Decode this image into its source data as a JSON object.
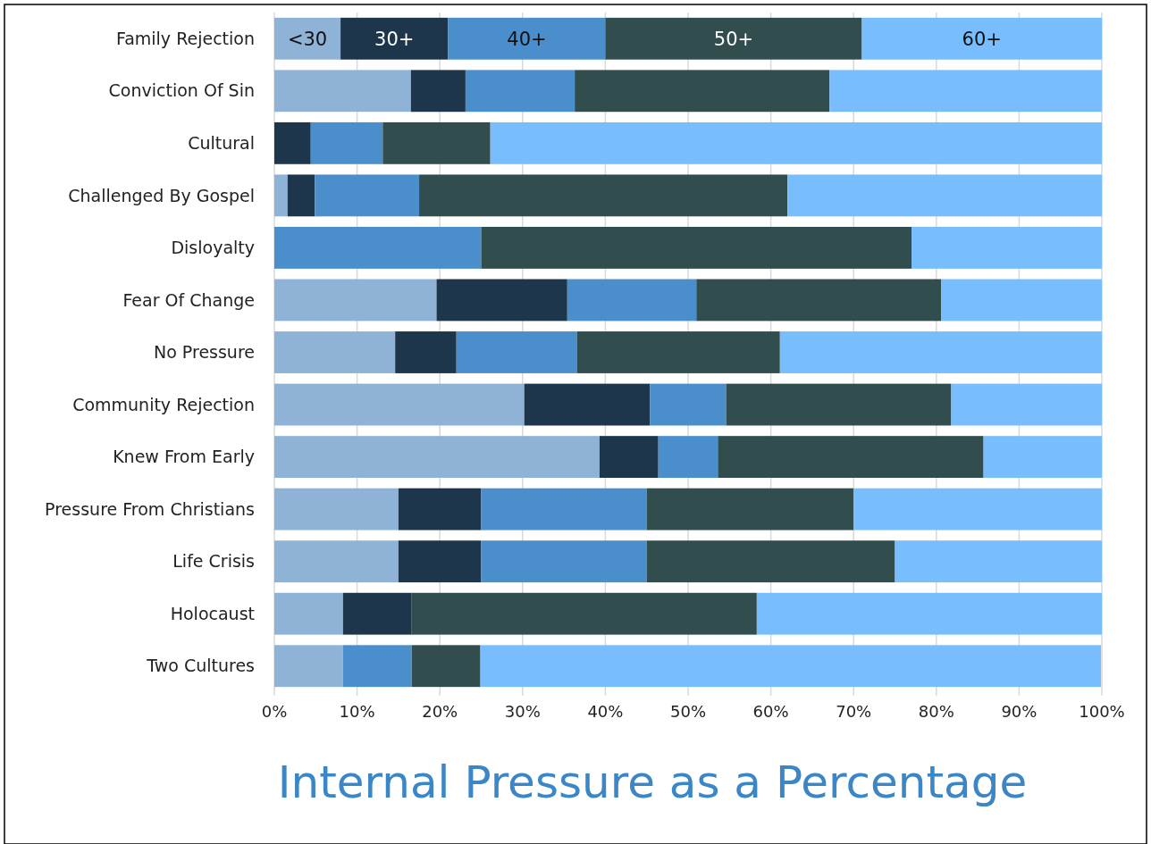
{
  "chart_data": {
    "type": "bar",
    "orientation": "horizontal",
    "stacked": true,
    "title": "Internal Pressure as a Percentage",
    "categories": [
      "Family Rejection",
      "Conviction Of Sin",
      "Cultural",
      "Challenged By Gospel",
      "Disloyalty",
      "Fear Of Change",
      "No Pressure",
      "Community Rejection",
      "Knew From Early",
      "Pressure From Christians",
      "Life Crisis",
      "Holocaust",
      "Two Cultures"
    ],
    "series": [
      {
        "name": "<30",
        "color": "#8fb3d6",
        "values": [
          8,
          16.5,
          0,
          1.6,
          0,
          19.6,
          14.6,
          30.2,
          39.3,
          15,
          15,
          8.3,
          8.3
        ]
      },
      {
        "name": "30+",
        "color": "#1d364c",
        "values": [
          13,
          6.6,
          4.4,
          3.3,
          0,
          15.8,
          7.4,
          15.2,
          7.1,
          10,
          10,
          8.3,
          0
        ]
      },
      {
        "name": "40+",
        "color": "#4a8ecb",
        "values": [
          19,
          13.2,
          8.7,
          12.6,
          25,
          15.6,
          14.6,
          9.2,
          7.2,
          20,
          20,
          0,
          8.3
        ]
      },
      {
        "name": "50+",
        "color": "#324d4d",
        "values": [
          31,
          30.8,
          13,
          44.5,
          52,
          29.6,
          24.5,
          27.2,
          32.1,
          25,
          30,
          41.7,
          8.3
        ]
      },
      {
        "name": "60+",
        "color": "#78bdfd",
        "values": [
          29,
          32.9,
          73.9,
          38,
          23,
          19.4,
          38.9,
          18.2,
          14.3,
          30,
          25,
          41.7,
          75
        ]
      }
    ],
    "xlim": [
      0,
      100
    ],
    "xticks": [
      {
        "value": 0,
        "label": "0%"
      },
      {
        "value": 10,
        "label": "10%"
      },
      {
        "value": 20,
        "label": "20%"
      },
      {
        "value": 30,
        "label": "30%"
      },
      {
        "value": 40,
        "label": "40%"
      },
      {
        "value": 50,
        "label": "50%"
      },
      {
        "value": 60,
        "label": "60%"
      },
      {
        "value": 70,
        "label": "70%"
      },
      {
        "value": 80,
        "label": "80%"
      },
      {
        "value": 90,
        "label": "90%"
      },
      {
        "value": 100,
        "label": "100%"
      }
    ],
    "grid": "x"
  }
}
